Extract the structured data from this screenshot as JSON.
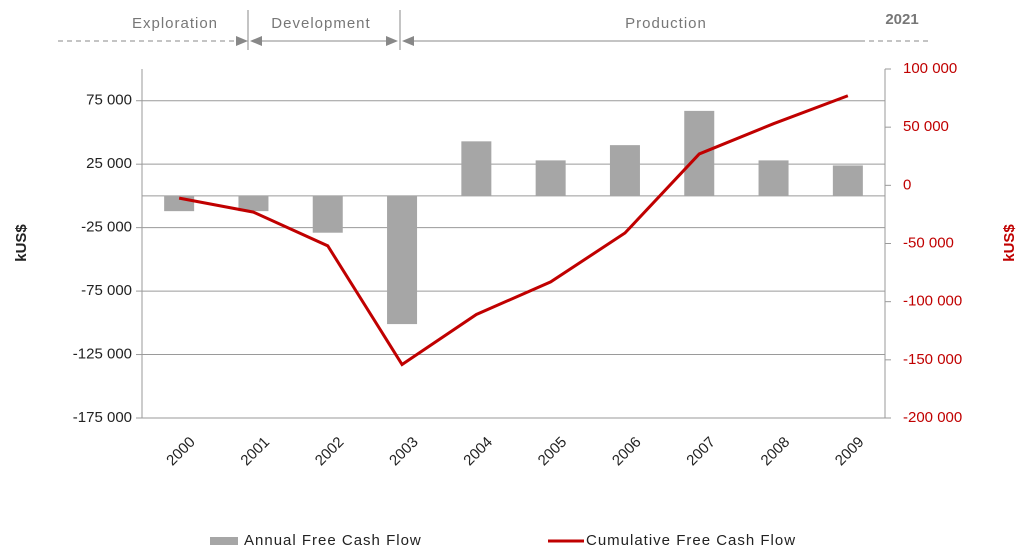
{
  "chart_data": {
    "type": "bar_line",
    "phases": [
      "Exploration",
      "Development",
      "Production"
    ],
    "year_label": "2021",
    "ylabel": "kUS$",
    "y2label": "kUS$",
    "categories": [
      "2000",
      "2001",
      "2002",
      "2003",
      "2004",
      "2005",
      "2006",
      "2007",
      "2008",
      "2009"
    ],
    "series": [
      {
        "name": "Annual Free Cash Flow",
        "type": "bar",
        "color": "#a6a6a6",
        "values": [
          -12000,
          -12000,
          -29000,
          -101000,
          43000,
          28000,
          40000,
          67000,
          28000,
          24000
        ]
      },
      {
        "name": "Cumulative Free Cash Flow",
        "type": "line",
        "axis": "y2",
        "color": "#c00000",
        "values": [
          -11000,
          -23000,
          -52000,
          -154000,
          -111000,
          -83000,
          -41000,
          27000,
          53000,
          77000
        ]
      }
    ],
    "ylim": [
      -175000,
      100000
    ],
    "yticks": [
      {
        "value": 75000,
        "label": "75 000"
      },
      {
        "value": 25000,
        "label": "25 000"
      },
      {
        "value": -25000,
        "label": "-25 000"
      },
      {
        "value": -75000,
        "label": "-75 000"
      },
      {
        "value": -125000,
        "label": "-125 000"
      },
      {
        "value": -175000,
        "label": "-175 000"
      }
    ],
    "y2lim": [
      -200000,
      100000
    ],
    "y2ticks": [
      {
        "value": 100000,
        "label": "100 000"
      },
      {
        "value": 50000,
        "label": "50 000"
      },
      0,
      {
        "value": -50000,
        "label": "-50 000"
      },
      {
        "value": -100000,
        "label": "-100 000"
      },
      {
        "value": -150000,
        "label": "-150 000"
      },
      {
        "value": -200000,
        "label": "-200 000"
      }
    ],
    "grid": true,
    "legend": "bottom"
  }
}
